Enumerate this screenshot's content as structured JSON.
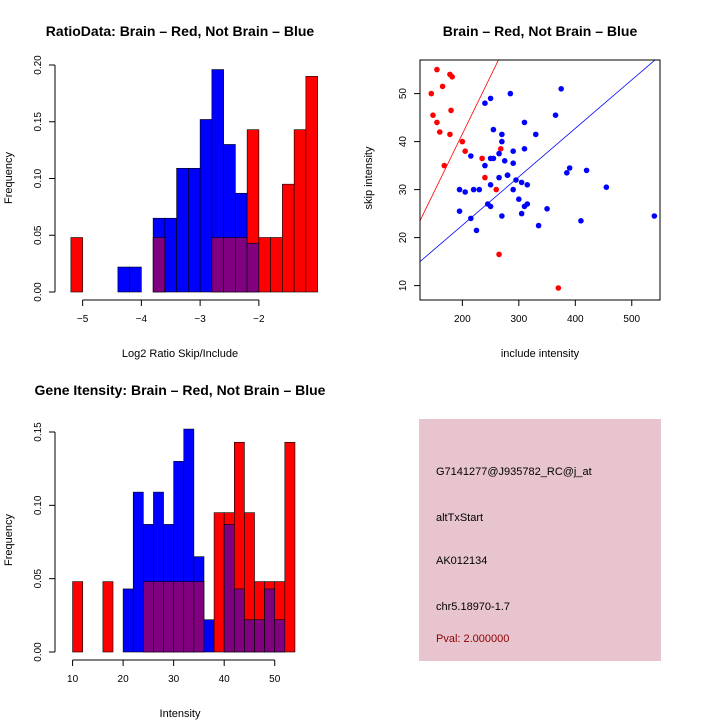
{
  "colors": {
    "brain": "#ff0000",
    "not_brain": "#0000ff",
    "overlap": "#800080",
    "info_panel": "#e8c4cf",
    "pval_text": "#8b0000"
  },
  "chart_data": [
    {
      "id": "ratio",
      "type": "bar",
      "title": "RatioData: Brain – Red, Not Brain – Blue",
      "xlabel": "Log2 Ratio Skip/Include",
      "ylabel": "Frequency",
      "xlim": [
        -5.3,
        -1.3
      ],
      "ylim": [
        0,
        0.2
      ],
      "xticks": [
        -5,
        -4,
        -3,
        -2
      ],
      "yticks": [
        0.0,
        0.05,
        0.1,
        0.15,
        0.2
      ],
      "ytick_labels": [
        "0.00",
        "0.05",
        "0.10",
        "0.15",
        "0.20"
      ],
      "bin_start": -5.2,
      "bin_width": 0.2,
      "series": [
        {
          "name": "Brain",
          "values": [
            0.048,
            0,
            0,
            0,
            0,
            0,
            0,
            0.048,
            0,
            0,
            0,
            0,
            0.048,
            0.048,
            0.048,
            0.143,
            0.048,
            0.048,
            0.095,
            0.143,
            0.19
          ]
        },
        {
          "name": "Not Brain",
          "values": [
            0,
            0,
            0,
            0,
            0.022,
            0.022,
            0,
            0.065,
            0.065,
            0.109,
            0.109,
            0.152,
            0.196,
            0.13,
            0.087,
            0.043,
            0,
            0,
            0,
            0,
            0
          ]
        }
      ]
    },
    {
      "id": "scatter",
      "type": "scatter",
      "title": "Brain – Red, Not Brain – Blue",
      "xlabel": "include intensity",
      "ylabel": "skip intensity",
      "xlim": [
        125,
        550
      ],
      "ylim": [
        7,
        57
      ],
      "xticks": [
        200,
        300,
        400,
        500
      ],
      "yticks": [
        10,
        20,
        30,
        40,
        50
      ],
      "series": [
        {
          "name": "Brain",
          "points": [
            [
              155,
              55
            ],
            [
              178,
              54
            ],
            [
              182,
              53.5
            ],
            [
              165,
              51.5
            ],
            [
              145,
              50
            ],
            [
              148,
              45.5
            ],
            [
              180,
              46.5
            ],
            [
              155,
              44
            ],
            [
              160,
              42
            ],
            [
              178,
              41.5
            ],
            [
              200,
              40
            ],
            [
              205,
              38
            ],
            [
              235,
              36.5
            ],
            [
              168,
              35
            ],
            [
              240,
              32.5
            ],
            [
              268,
              38.5
            ],
            [
              260,
              30
            ],
            [
              265,
              16.5
            ],
            [
              370,
              9.5
            ]
          ]
        },
        {
          "name": "Not Brain",
          "points": [
            [
              240,
              48
            ],
            [
              250,
              49
            ],
            [
              285,
              50
            ],
            [
              375,
              51
            ],
            [
              365,
              45.5
            ],
            [
              255,
              42.5
            ],
            [
              270,
              41.5
            ],
            [
              310,
              44
            ],
            [
              270,
              40
            ],
            [
              330,
              41.5
            ],
            [
              290,
              38
            ],
            [
              310,
              38.5
            ],
            [
              250,
              36.5
            ],
            [
              265,
              37.5
            ],
            [
              240,
              35
            ],
            [
              255,
              36.5
            ],
            [
              275,
              36
            ],
            [
              290,
              35.5
            ],
            [
              280,
              33
            ],
            [
              295,
              32
            ],
            [
              305,
              31.5
            ],
            [
              315,
              31
            ],
            [
              280,
              33
            ],
            [
              215,
              37
            ],
            [
              195,
              30
            ],
            [
              220,
              30
            ],
            [
              205,
              29.5
            ],
            [
              230,
              30
            ],
            [
              250,
              31
            ],
            [
              265,
              32.5
            ],
            [
              290,
              30
            ],
            [
              300,
              28
            ],
            [
              315,
              27
            ],
            [
              310,
              26.5
            ],
            [
              245,
              27
            ],
            [
              250,
              26.5
            ],
            [
              270,
              24.5
            ],
            [
              305,
              25
            ],
            [
              195,
              25.5
            ],
            [
              215,
              24
            ],
            [
              225,
              21.5
            ],
            [
              335,
              22.5
            ],
            [
              350,
              26
            ],
            [
              385,
              33.5
            ],
            [
              390,
              34.5
            ],
            [
              420,
              34
            ],
            [
              410,
              23.5
            ],
            [
              455,
              30.5
            ],
            [
              540,
              24.5
            ]
          ]
        }
      ],
      "lines": [
        {
          "name": "Brain fit",
          "color": "#ff0000",
          "from": [
            125,
            23.5
          ],
          "to": [
            550,
            126
          ]
        },
        {
          "name": "Not Brain fit",
          "color": "#0000ff",
          "from": [
            125,
            15
          ],
          "to": [
            550,
            57.9
          ]
        }
      ]
    },
    {
      "id": "intensity",
      "type": "bar",
      "title": "Gene Itensity: Brain – Red, Not Brain – Blue",
      "xlabel": "Intensity",
      "ylabel": "Frequency",
      "xlim": [
        8.5,
        55
      ],
      "ylim": [
        0,
        0.15
      ],
      "xticks": [
        10,
        20,
        30,
        40,
        50
      ],
      "yticks": [
        0.0,
        0.05,
        0.1,
        0.15
      ],
      "ytick_labels": [
        "0.00",
        "0.05",
        "0.10",
        "0.15"
      ],
      "bin_start": 10,
      "bin_width": 2,
      "series": [
        {
          "name": "Brain",
          "values": [
            0.048,
            0,
            0,
            0.048,
            0,
            0,
            0,
            0.048,
            0.048,
            0.048,
            0.048,
            0.048,
            0.048,
            0,
            0.095,
            0.095,
            0.143,
            0.095,
            0.048,
            0.048,
            0.048,
            0.143
          ]
        },
        {
          "name": "Not Brain",
          "values": [
            0,
            0,
            0,
            0,
            0,
            0.043,
            0.109,
            0.087,
            0.109,
            0.087,
            0.13,
            0.152,
            0.065,
            0.022,
            0,
            0.087,
            0.043,
            0.022,
            0.022,
            0.043,
            0.022,
            0
          ]
        }
      ]
    }
  ],
  "info_panel": {
    "gene_id": "G7141277@J935782_RC@j_at",
    "event_type": "altTxStart",
    "accession": "AK012134",
    "location": "chr5.18970-1.7",
    "pval": "Pval: 2.000000"
  }
}
